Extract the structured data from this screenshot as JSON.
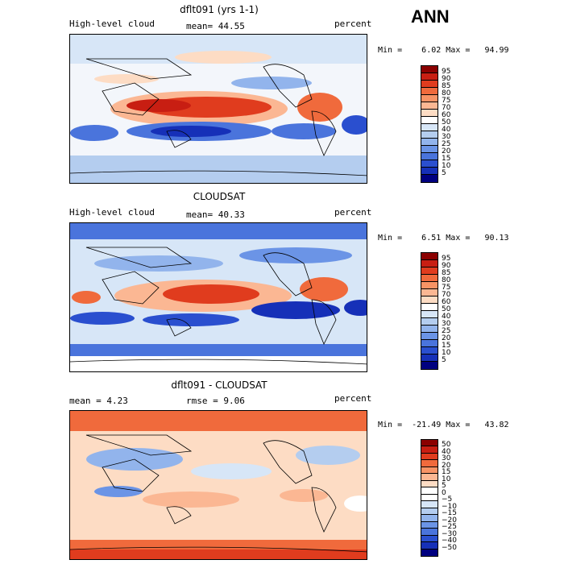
{
  "season": "ANN",
  "panels": [
    {
      "title": "dflt091 (yrs 1-1)",
      "left_label": "High-level cloud",
      "center_label": "mean=   44.55",
      "center_label2": "",
      "right_label": "percent",
      "minmax": "Min =    6.02 Max =   94.99",
      "colorbar": {
        "colors": [
          "#8b0000",
          "#c81e12",
          "#e03c1e",
          "#f06a3c",
          "#f79365",
          "#fbb793",
          "#fddcc4",
          "#ffffff",
          "#d7e6f7",
          "#b4cdef",
          "#92b4ec",
          "#6b94e6",
          "#4a74dc",
          "#2a4fcf",
          "#1630b8",
          "#000080"
        ],
        "labels": [
          "95",
          "90",
          "85",
          "80",
          "75",
          "70",
          "60",
          "50",
          "40",
          "30",
          "25",
          "20",
          "15",
          "10",
          "5"
        ]
      }
    },
    {
      "title": "CLOUDSAT",
      "left_label": "High-level cloud",
      "center_label": "mean=   40.33",
      "center_label2": "",
      "right_label": "percent",
      "minmax": "Min =    6.51 Max =   90.13",
      "colorbar": {
        "colors": [
          "#8b0000",
          "#c81e12",
          "#e03c1e",
          "#f06a3c",
          "#f79365",
          "#fbb793",
          "#fddcc4",
          "#ffffff",
          "#d7e6f7",
          "#b4cdef",
          "#92b4ec",
          "#6b94e6",
          "#4a74dc",
          "#2a4fcf",
          "#1630b8",
          "#000080"
        ],
        "labels": [
          "95",
          "90",
          "85",
          "80",
          "75",
          "70",
          "60",
          "50",
          "40",
          "30",
          "25",
          "20",
          "15",
          "10",
          "5"
        ]
      }
    },
    {
      "title": "dflt091 - CLOUDSAT",
      "left_label": "mean =     4.23",
      "center_label": "rmse =    9.06",
      "center_label2": "",
      "right_label": "percent",
      "minmax": "Min =  -21.49 Max =   43.82",
      "colorbar": {
        "colors": [
          "#8b0000",
          "#c81e12",
          "#e03c1e",
          "#f06a3c",
          "#f79365",
          "#fbb793",
          "#fddcc4",
          "#ffffff",
          "#ffffff",
          "#d7e6f7",
          "#b4cdef",
          "#92b4ec",
          "#6b94e6",
          "#4a74dc",
          "#2a4fcf",
          "#1630b8",
          "#000080"
        ],
        "labels": [
          "50",
          "40",
          "30",
          "20",
          "15",
          "10",
          "5",
          "0",
          "−5",
          "−10",
          "−15",
          "−20",
          "−25",
          "−30",
          "−40",
          "−50"
        ]
      }
    }
  ]
}
